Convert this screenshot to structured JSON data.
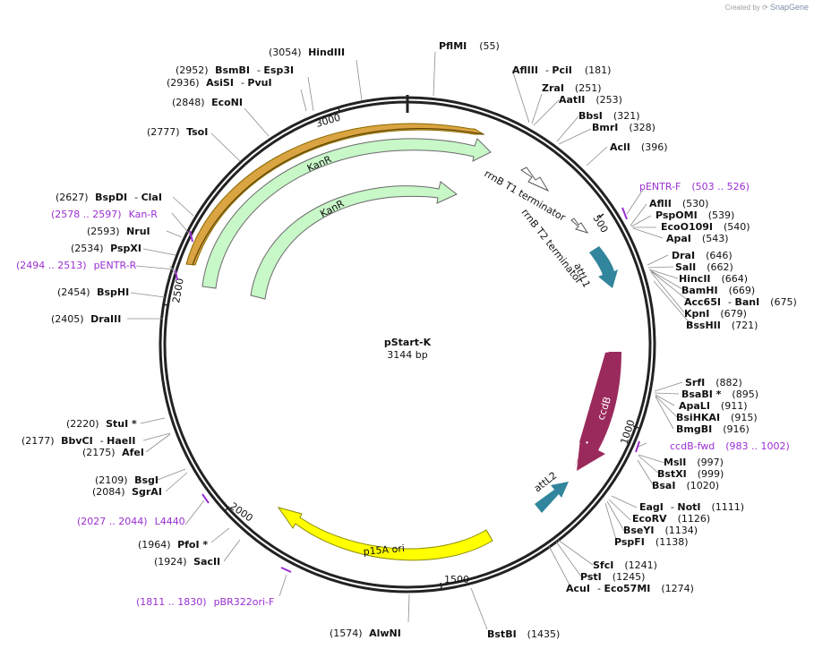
{
  "watermark": {
    "prefix": "Created by",
    "brand": "SnapGene"
  },
  "plasmid": {
    "name": "pStart-K",
    "length_label": "3144 bp",
    "length": 3144
  },
  "ticks": [
    "500",
    "1000",
    "1500",
    "2000",
    "2500",
    "3000"
  ],
  "features": [
    {
      "id": "kanr_outer",
      "label": "KanR",
      "color": "#c8f7c8"
    },
    {
      "id": "kanr_inner",
      "label": "KanR",
      "color": "#c8f7c8"
    },
    {
      "id": "rrnb_t1",
      "label": "rrnB T1 terminator",
      "color": "#ffffff"
    },
    {
      "id": "rrnb_t2",
      "label": "rrnB T2 terminator",
      "color": "#ffffff"
    },
    {
      "id": "attl1",
      "label": "attL1",
      "color": "#31859c"
    },
    {
      "id": "ccdb",
      "label": "ccdB",
      "color": "#9b2a5c"
    },
    {
      "id": "attl2",
      "label": "attL2",
      "color": "#31859c"
    },
    {
      "id": "p15a",
      "label": "p15A ori",
      "color": "#ffff00"
    }
  ],
  "sites": [
    {
      "pos": "(3054)",
      "name": "HindIII"
    },
    {
      "pos": "(55)",
      "name": "PflMI"
    },
    {
      "pos": "(2952)",
      "name": "BsmBI",
      "extra": "Esp3I"
    },
    {
      "pos": "(2936)",
      "name": "AsiSI",
      "extra": "PvuI"
    },
    {
      "pos": "(181)",
      "name": "AflIII",
      "extra": "PciI"
    },
    {
      "pos": "(251)",
      "name": "ZraI"
    },
    {
      "pos": "(253)",
      "name": "AatII"
    },
    {
      "pos": "(2848)",
      "name": "EcoNI"
    },
    {
      "pos": "(321)",
      "name": "BbsI"
    },
    {
      "pos": "(328)",
      "name": "BmrI"
    },
    {
      "pos": "(2777)",
      "name": "TsoI"
    },
    {
      "pos": "(396)",
      "name": "AclI"
    },
    {
      "pos": "(2627)",
      "name": "BspDI",
      "extra": "ClaI"
    },
    {
      "pos": "(530)",
      "name": "AflII"
    },
    {
      "pos": "(539)",
      "name": "PspOMI"
    },
    {
      "pos": "(2593)",
      "name": "NruI"
    },
    {
      "pos": "(540)",
      "name": "EcoO109I"
    },
    {
      "pos": "(543)",
      "name": "ApaI"
    },
    {
      "pos": "(2534)",
      "name": "PspXI"
    },
    {
      "pos": "(646)",
      "name": "DraI"
    },
    {
      "pos": "(662)",
      "name": "SalI"
    },
    {
      "pos": "(664)",
      "name": "HincII"
    },
    {
      "pos": "(2454)",
      "name": "BspHI"
    },
    {
      "pos": "(669)",
      "name": "BamHI"
    },
    {
      "pos": "(675)",
      "name": "Acc65I",
      "extra": "BanI"
    },
    {
      "pos": "(679)",
      "name": "KpnI"
    },
    {
      "pos": "(2405)",
      "name": "DraIII"
    },
    {
      "pos": "(721)",
      "name": "BssHII"
    },
    {
      "pos": "(882)",
      "name": "SrfI"
    },
    {
      "pos": "(895)",
      "name": "BsaBI *"
    },
    {
      "pos": "(911)",
      "name": "ApaLI"
    },
    {
      "pos": "(915)",
      "name": "BsiHKAI"
    },
    {
      "pos": "(2220)",
      "name": "StuI *"
    },
    {
      "pos": "(916)",
      "name": "BmgBI"
    },
    {
      "pos": "(2177)",
      "name": "BbvCI",
      "extra": "HaeII"
    },
    {
      "pos": "(2175)",
      "name": "AfeI"
    },
    {
      "pos": "(997)",
      "name": "MslI"
    },
    {
      "pos": "(999)",
      "name": "BstXI"
    },
    {
      "pos": "(1020)",
      "name": "BsaI"
    },
    {
      "pos": "(2109)",
      "name": "BsgI"
    },
    {
      "pos": "(2084)",
      "name": "SgrAI"
    },
    {
      "pos": "(1111)",
      "name": "EagI",
      "extra": "NotI"
    },
    {
      "pos": "(1126)",
      "name": "EcoRV"
    },
    {
      "pos": "(1134)",
      "name": "BseYI"
    },
    {
      "pos": "(1138)",
      "name": "PspFI"
    },
    {
      "pos": "(1964)",
      "name": "PfoI *"
    },
    {
      "pos": "(1924)",
      "name": "SacII"
    },
    {
      "pos": "(1241)",
      "name": "SfcI"
    },
    {
      "pos": "(1245)",
      "name": "PstI"
    },
    {
      "pos": "(1274)",
      "name": "AcuI",
      "extra": "Eco57MI"
    },
    {
      "pos": "(1574)",
      "name": "AlwNI"
    },
    {
      "pos": "(1435)",
      "name": "BstBI"
    }
  ],
  "primers": [
    {
      "name": "pENTR-F",
      "range": "(503 .. 526)"
    },
    {
      "name": "Kan-R",
      "range": "(2578 .. 2597)"
    },
    {
      "name": "pENTR-R",
      "range": "(2494 .. 2513)"
    },
    {
      "name": "ccdB-fwd",
      "range": "(983 .. 1002)"
    },
    {
      "name": "L4440",
      "range": "(2027 .. 2044)"
    },
    {
      "name": "pBR322ori-F",
      "range": "(1811 .. 1830)"
    }
  ],
  "colors": {
    "primer": "#9a2fd0",
    "backbone": "#222222",
    "ori_outline": "#8b6a00"
  }
}
